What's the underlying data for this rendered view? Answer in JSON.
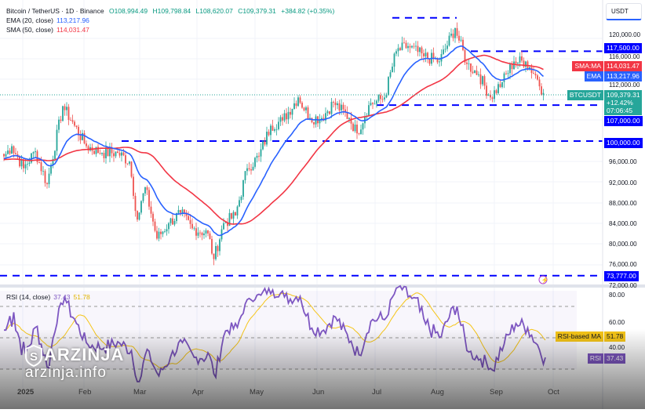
{
  "header": {
    "symbol": "Bitcoin / TetherUS · 1D · Binance",
    "open": "O108,994.49",
    "high": "H109,798.84",
    "low": "L108,620.07",
    "close": "C109,379.31",
    "change": "+384.82 (+0.35%)",
    "ema_label": "EMA (20, close)",
    "ema_value": "113,217.96",
    "sma_label": "SMA (50, close)",
    "sma_value": "114,031.47"
  },
  "axis": {
    "currency": "USDT",
    "price_ticks": [
      "120,000.00",
      "116,000.00",
      "112,000.00",
      "96,000.00",
      "92,000.00",
      "88,000.00",
      "84,000.00",
      "80,000.00",
      "76,000.00",
      "72,000.00"
    ],
    "rsi_ticks": [
      "80.00",
      "60.00",
      "40.00"
    ],
    "dates": [
      "2025",
      "Feb",
      "Mar",
      "Apr",
      "May",
      "Jun",
      "Jul",
      "Aug",
      "Sep",
      "Oct"
    ]
  },
  "tags": {
    "sma_name": "SMA:MA",
    "sma_value": "114,031.47",
    "ema_name": "EMA",
    "ema_value": "113,217.96",
    "symbol": "BTCUSDT",
    "price": "109,379.31",
    "pct": "+12.42%",
    "countdown": "07:06:45",
    "rsi_ma_name": "RSI-based MA",
    "rsi_ma_value": "51.78",
    "rsi_name": "RSI",
    "rsi_value": "37.43"
  },
  "levels": [
    "117,500.00",
    "107,000.00",
    "100,000.00",
    "73,777.00"
  ],
  "rsi_legend": {
    "label": "RSI (14, close)",
    "rsi": "37.43",
    "ma": "51.78"
  },
  "watermark": {
    "brand": "ARZINJA",
    "site": "arzinja.info"
  },
  "colors": {
    "up": "#26a69a",
    "down": "#ef5350",
    "ema": "#2962ff",
    "sma": "#f23645",
    "level": "#0000ff",
    "rsi": "#7e57c2",
    "rsi_ma": "#f5c518"
  },
  "chart_data": {
    "type": "candlestick",
    "title": "Bitcoin / TetherUS · 1D · Binance",
    "ylabel": "USDT",
    "ylim": [
      72000,
      124000
    ],
    "anchors_day": [
      0,
      4,
      10,
      16,
      22,
      30,
      36,
      42,
      50,
      58,
      64,
      68,
      72,
      78,
      84,
      90,
      96,
      104,
      107,
      112,
      118,
      124,
      130,
      136,
      142,
      150,
      156,
      162,
      168,
      176,
      180,
      186,
      194,
      200,
      206,
      214,
      222,
      230,
      236,
      242,
      248,
      254,
      260,
      266,
      271,
      275
    ],
    "anchors_close": [
      97000,
      99000,
      94700,
      98000,
      91600,
      106800,
      103000,
      99000,
      97700,
      97700,
      96000,
      84700,
      91000,
      81000,
      84000,
      86000,
      83000,
      82000,
      77000,
      84000,
      85500,
      94700,
      97000,
      103000,
      104000,
      108500,
      104500,
      104500,
      107500,
      104500,
      101500,
      107000,
      108500,
      117500,
      118500,
      116500,
      115500,
      122000,
      115000,
      113000,
      108500,
      111500,
      115500,
      115500,
      112800,
      109379
    ],
    "levels": [
      124000,
      117500,
      107000,
      100000,
      73777
    ],
    "indicators": {
      "ema_period": 20,
      "sma_period": 50,
      "rsi_period": 14,
      "rsi_last": 37.43,
      "rsi_ma_last": 51.78
    }
  }
}
